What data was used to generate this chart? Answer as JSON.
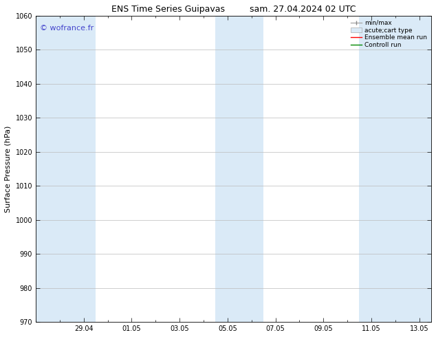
{
  "title_left": "ENS Time Series Guipavas",
  "title_right": "sam. 27.04.2024 02 UTC",
  "ylabel": "Surface Pressure (hPa)",
  "watermark": "© wofrance.fr",
  "watermark_color": "#4444cc",
  "ylim": [
    970,
    1060
  ],
  "yticks": [
    970,
    980,
    990,
    1000,
    1010,
    1020,
    1030,
    1040,
    1050,
    1060
  ],
  "xtick_labels": [
    "29.04",
    "01.05",
    "03.05",
    "05.05",
    "07.05",
    "09.05",
    "11.05",
    "13.05"
  ],
  "xtick_positions": [
    2,
    4,
    6,
    8,
    10,
    12,
    14,
    16
  ],
  "shade_bands": [
    {
      "xmin": 0.0,
      "xmax": 2.5,
      "color": "#daeaf7"
    },
    {
      "xmin": 7.5,
      "xmax": 9.5,
      "color": "#daeaf7"
    },
    {
      "xmin": 13.5,
      "xmax": 16.5,
      "color": "#daeaf7"
    }
  ],
  "background_color": "#ffffff",
  "plot_bg_color": "#ffffff",
  "grid_color": "#bbbbbb",
  "legend_labels": [
    "min/max",
    "acute;cart type",
    "Ensemble mean run",
    "Controll run"
  ],
  "xmin": 0,
  "xmax": 16.5,
  "title_fontsize": 9,
  "label_fontsize": 8,
  "tick_fontsize": 7,
  "watermark_fontsize": 8
}
